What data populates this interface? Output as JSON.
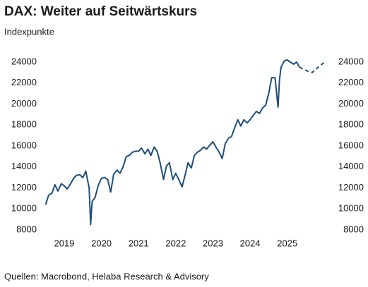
{
  "chart_data": {
    "type": "line",
    "title": "DAX: Weiter auf Seitwärtskurs",
    "subtitle": "Indexpunkte",
    "source": "Quellen: Macrobond, Helaba Research & Advisory",
    "xlim": [
      2018.95,
      2026.55
    ],
    "xticks": [
      {
        "value": 2019.5,
        "label": "2019"
      },
      {
        "value": 2020.5,
        "label": "2020"
      },
      {
        "value": 2021.5,
        "label": "2021"
      },
      {
        "value": 2022.5,
        "label": "2022"
      },
      {
        "value": 2023.5,
        "label": "2023"
      },
      {
        "value": 2024.5,
        "label": "2024"
      },
      {
        "value": 2025.5,
        "label": "2025"
      }
    ],
    "ylim": [
      8000,
      24000
    ],
    "yticks": [
      8000,
      10000,
      12000,
      14000,
      16000,
      18000,
      20000,
      22000,
      24000
    ],
    "right_axis": true,
    "grid": false,
    "series": [
      {
        "color": "#1f4e79",
        "dashed": false,
        "x": [
          2019.0,
          2019.08,
          2019.17,
          2019.25,
          2019.33,
          2019.42,
          2019.5,
          2019.58,
          2019.67,
          2019.75,
          2019.83,
          2019.92,
          2020.0,
          2020.08,
          2020.17,
          2020.21,
          2020.25,
          2020.33,
          2020.42,
          2020.5,
          2020.58,
          2020.67,
          2020.75,
          2020.83,
          2020.92,
          2021.0,
          2021.08,
          2021.17,
          2021.25,
          2021.33,
          2021.42,
          2021.5,
          2021.58,
          2021.67,
          2021.75,
          2021.83,
          2021.92,
          2022.0,
          2022.08,
          2022.17,
          2022.25,
          2022.33,
          2022.42,
          2022.5,
          2022.58,
          2022.67,
          2022.75,
          2022.83,
          2022.92,
          2023.0,
          2023.08,
          2023.17,
          2023.25,
          2023.33,
          2023.42,
          2023.5,
          2023.58,
          2023.67,
          2023.75,
          2023.83,
          2023.92,
          2024.0,
          2024.08,
          2024.17,
          2024.25,
          2024.33,
          2024.42,
          2024.5,
          2024.58,
          2024.67,
          2024.75,
          2024.83,
          2024.92,
          2025.0,
          2025.08,
          2025.17,
          2025.25,
          2025.29,
          2025.33,
          2025.42,
          2025.5,
          2025.58,
          2025.67,
          2025.75,
          2025.83
        ],
        "values": [
          10400,
          11300,
          11500,
          12300,
          11700,
          12400,
          12200,
          11900,
          12400,
          12900,
          13200,
          13250,
          12980,
          13600,
          12000,
          8500,
          10700,
          11100,
          12300,
          12900,
          13000,
          12800,
          11600,
          13300,
          13700,
          13400,
          14000,
          15000,
          15100,
          15400,
          15500,
          15500,
          15800,
          15250,
          15700,
          15100,
          15900,
          15500,
          14400,
          12800,
          14100,
          14400,
          12800,
          13400,
          12800,
          12100,
          13200,
          14400,
          13900,
          15100,
          15400,
          15600,
          15900,
          15700,
          16100,
          16400,
          15900,
          15400,
          14800,
          16200,
          16750,
          16900,
          17700,
          18500,
          17900,
          18500,
          18200,
          18500,
          18900,
          19300,
          19100,
          19600,
          19900,
          21000,
          22500,
          22500,
          19700,
          22300,
          23500,
          24100,
          24200,
          24000,
          23800,
          24000,
          23500
        ]
      },
      {
        "color": "#1f4e79",
        "dashed": true,
        "x": [
          2025.83,
          2026.0,
          2026.17,
          2026.33,
          2026.5
        ],
        "values": [
          23500,
          23200,
          23000,
          23500,
          24000
        ]
      }
    ]
  }
}
